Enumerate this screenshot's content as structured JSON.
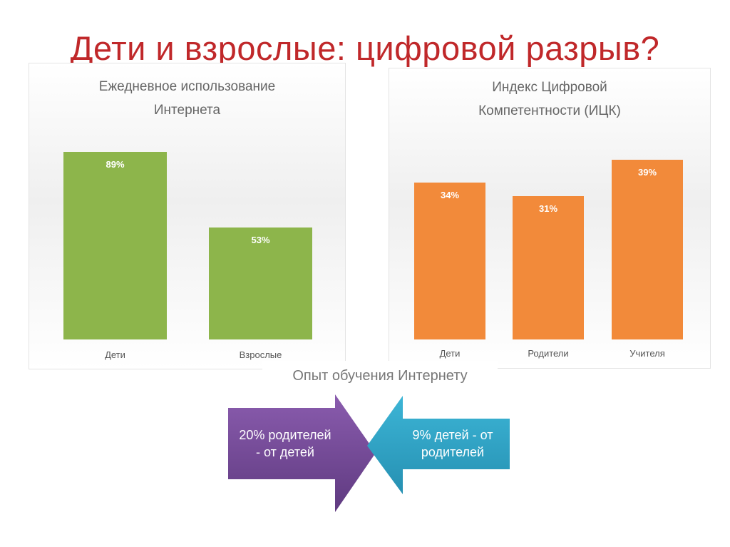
{
  "slide_title": "Дети и взрослые: цифровой разрыв?",
  "chart_data": [
    {
      "type": "bar",
      "title": "Ежедневное использование Интернета",
      "title_lines": [
        "Ежедневное использование",
        "Интернета"
      ],
      "categories": [
        "Дети",
        "Взрослые"
      ],
      "values": [
        89,
        53
      ],
      "labels": [
        "89%",
        "53%"
      ],
      "unit": "%",
      "color": "#8db54b"
    },
    {
      "type": "bar",
      "title": "Индекс Цифровой Компетентности (ИЦК)",
      "title_lines": [
        "Индекс Цифровой",
        "Компетентности (ИЦК)"
      ],
      "categories": [
        "Дети",
        "Родители",
        "Учителя"
      ],
      "values": [
        34,
        31,
        39
      ],
      "labels": [
        "34%",
        "31%",
        "39%"
      ],
      "unit": "%",
      "color": "#f28a3a"
    }
  ],
  "learning": {
    "title": "Опыт обучения Интернету",
    "left_arrow": [
      "20% родителей",
      "- от детей"
    ],
    "right_arrow": [
      "9% детей - от",
      "родителей"
    ],
    "left_color": "#7a4f9c",
    "right_color": "#2fa3c6"
  }
}
